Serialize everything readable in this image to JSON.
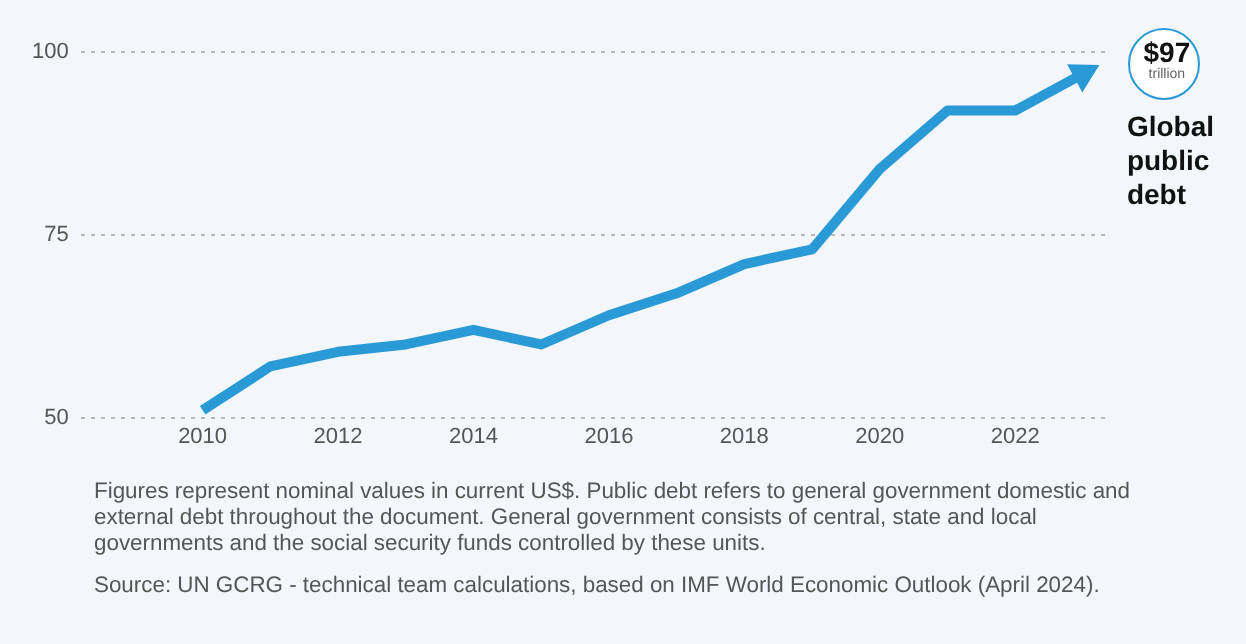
{
  "chart_data": {
    "type": "line",
    "x": [
      2010,
      2011,
      2012,
      2013,
      2014,
      2015,
      2016,
      2017,
      2018,
      2019,
      2020,
      2021,
      2022,
      2023
    ],
    "series": [
      {
        "color": "#2a9ad6",
        "values": [
          51,
          57,
          59,
          60,
          62,
          60,
          64,
          67,
          71,
          73,
          84,
          92,
          92,
          97
        ]
      }
    ],
    "xlim": [
      2008.2,
      2023.4
    ],
    "xticks": [
      2010,
      2012,
      2014,
      2016,
      2018,
      2020,
      2022
    ],
    "ylim": [
      50,
      100
    ],
    "yticks": [
      50,
      75,
      100
    ],
    "grid": "y",
    "legend": false,
    "marker": "none",
    "line_style": "solid",
    "annotations": [
      {
        "text": "$97\ntrillion",
        "x": 2023,
        "y": 97
      },
      {
        "text": "Global\npublic\ndebt",
        "x": 2023,
        "y": 97
      },
      "Figures represent nominal values in current US$. Public debt refers to general government domestic and external debt throughout the document. General government consists of central, state and local governments and the social security funds controlled by these units.",
      "Source:  UN GCRG - technical team calculations, based on IMF World Economic Outlook (April 2024)."
    ]
  }
}
